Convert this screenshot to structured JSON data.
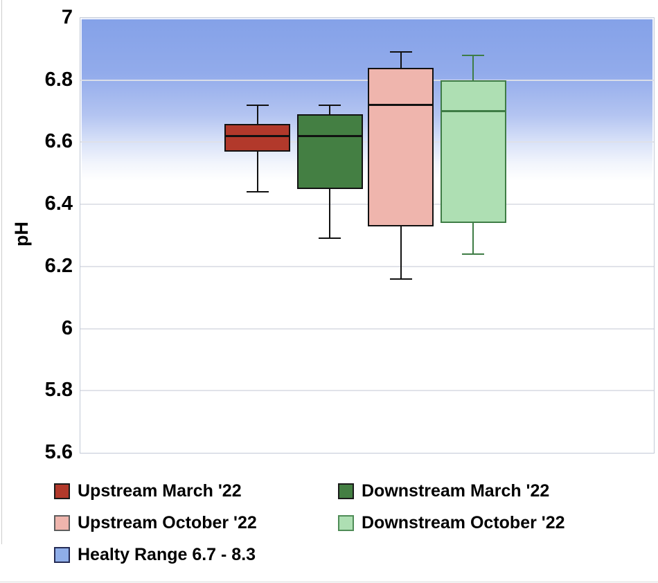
{
  "chart_data": {
    "type": "boxplot",
    "title": "",
    "xlabel": "",
    "ylabel": "pH",
    "ylim": [
      5.6,
      7.0
    ],
    "grid": true,
    "legend_position": "bottom",
    "yticks": [
      {
        "label": "7",
        "value": 7.0
      },
      {
        "label": "6.8",
        "value": 6.8
      },
      {
        "label": "6.6",
        "value": 6.6
      },
      {
        "label": "6.4",
        "value": 6.4
      },
      {
        "label": "6.2",
        "value": 6.2
      },
      {
        "label": "6",
        "value": 6.0
      },
      {
        "label": "5.8",
        "value": 5.8
      },
      {
        "label": "5.6",
        "value": 5.6
      }
    ],
    "series": [
      {
        "name": "Upstream March '22",
        "whisker_low": 6.44,
        "q1": 6.57,
        "median": 6.62,
        "q3": 6.66,
        "whisker_high": 6.72,
        "fill": "#b2392b",
        "stroke": "#111111",
        "x_frac": 0.309
      },
      {
        "name": "Downstream March '22",
        "whisker_low": 6.29,
        "q1": 6.45,
        "median": 6.62,
        "q3": 6.69,
        "whisker_high": 6.72,
        "fill": "#447f43",
        "stroke": "#111111",
        "x_frac": 0.435
      },
      {
        "name": "Upstream October '22",
        "whisker_low": 6.16,
        "q1": 6.33,
        "median": 6.72,
        "q3": 6.84,
        "whisker_high": 6.89,
        "fill": "#efb5ad",
        "stroke": "#111111",
        "x_frac": 0.559
      },
      {
        "name": "Downstream October '22",
        "whisker_low": 6.24,
        "q1": 6.34,
        "median": 6.7,
        "q3": 6.8,
        "whisker_high": 6.88,
        "fill": "#aedfb3",
        "stroke": "#3e7c45",
        "x_frac": 0.685
      }
    ],
    "healthy_range": {
      "label": "Healty Range 6.7 - 8.3",
      "low": 6.7,
      "high": 8.3,
      "band_top_color": "#84a1e8"
    }
  },
  "y_axis": {
    "label": "pH"
  },
  "legend": {
    "items": [
      {
        "label": "Upstream March '22",
        "fill": "#b2392b",
        "border": "#1a1a1a"
      },
      {
        "label": "Downstream March '22",
        "fill": "#447f43",
        "border": "#1a1a1a"
      },
      {
        "label": "Upstream October '22",
        "fill": "#efb5ad",
        "border": "#5e5e5e"
      },
      {
        "label": "Downstream October '22",
        "fill": "#aedfb3",
        "border": "#4f8c57"
      },
      {
        "label": "Healty Range 6.7 - 8.3",
        "fill": "#8faee9",
        "border": "#252c55"
      }
    ]
  }
}
